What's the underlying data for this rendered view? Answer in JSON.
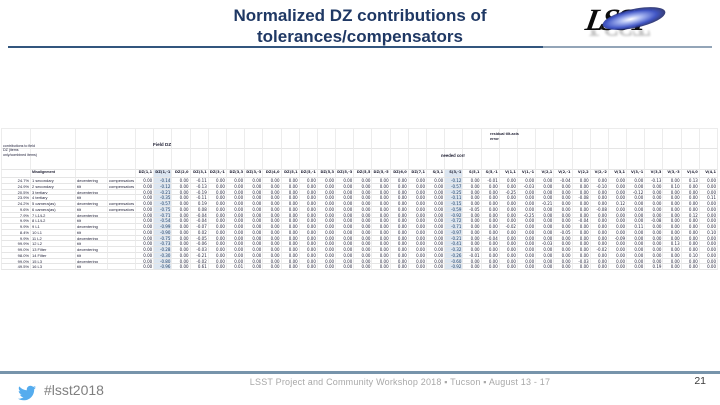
{
  "slide": {
    "title_line1": "Normalized DZ contributions of",
    "title_line2": "tolerances/compensators",
    "logo_text": "LSST",
    "hashtag": "#lsst2018",
    "footer": "LSST Project and Community Workshop 2018 ▪ Tucson ▪ August 13 - 17",
    "page_number": "21"
  },
  "colors": {
    "title": "#1F3864",
    "top_rule": "#33567E",
    "footer_rule": "#7794AB",
    "footer_text": "#A8A8A8",
    "twitter_blue": "#55ACEE",
    "cell_highlight": "#DCE6F1"
  },
  "table": {
    "corner_note": "contributions to field DZ (items only/combined items)",
    "group_labels": {
      "field_dz": "Field DZ",
      "needed_corr": "needed corr",
      "residual": "residual tilt-axis error"
    },
    "meta_headers": [
      "",
      "Misalignment",
      "",
      ""
    ],
    "columns": [
      "DZ(1,1",
      "DZ(1,-1",
      "DZ(2,0",
      "DZ(3,1",
      "DZ(3,-1",
      "DZ(3,3",
      "DZ(3,-3",
      "DZ(4,0",
      "DZ(5,1",
      "DZ(5,-1",
      "DZ(5,3",
      "DZ(5,-3",
      "DZ(5,5",
      "DZ(5,-5",
      "DZ(6,0",
      "DZ(7,1",
      "S(3,1",
      "S(3,-1",
      "S(5,1",
      "S(5,-1",
      "V(1,1",
      "V(1,-1",
      "V(2,1",
      "V(2,-1",
      "V(2,2",
      "V(2,-2",
      "V(3,1",
      "V(3,-1",
      "V(3,3",
      "V(3,-3",
      "V(4,0",
      "V(4,1"
    ],
    "default_value": "0.00",
    "highlight_columns": [
      1,
      17
    ],
    "rows": [
      {
        "pct": "24.7%",
        "item": "1 secondary",
        "type": "decentering",
        "comp": "compensators",
        "values": {
          "1": "-0.14",
          "3": "-0.11",
          "17": "-0.12",
          "19": "-0.01",
          "23": "-0.04",
          "28": "-0.13",
          "30": "0.13"
        }
      },
      {
        "pct": "24.9%",
        "item": "2 secondary",
        "type": "tilt",
        "comp": "compensators",
        "values": {
          "1": "-0.12",
          "3": "-0.13",
          "17": "-0.57",
          "21": "-0.03",
          "25": "-0.10",
          "29": "0.10"
        }
      },
      {
        "pct": "20.5%",
        "item": "3 tertiary",
        "type": "decentering",
        "comp": "",
        "values": {
          "1": "-0.21",
          "3": "-0.19",
          "17": "-0.25",
          "20": "-0.25",
          "27": "-0.12"
        }
      },
      {
        "pct": "23.9%",
        "item": "4 tertiary",
        "type": "tilt",
        "comp": "",
        "values": {
          "1": "-0.35",
          "3": "-0.11",
          "17": "-0.11",
          "24": "-0.08",
          "31": "0.11"
        }
      },
      {
        "pct": "24.2%",
        "item": "5 camera(as)",
        "type": "decentering",
        "comp": "compensators",
        "values": {
          "1": "-0.57",
          "3": "0.19",
          "17": "-0.15",
          "22": "-0.21",
          "26": "0.12"
        }
      },
      {
        "pct": "9.6%",
        "item": "6 camera(as)",
        "type": "tilt",
        "comp": "compensators",
        "values": {
          "1": "-0.75",
          "3": "0.08",
          "17": "-0.59",
          "18": "-0.05",
          "25": "-0.08"
        }
      },
      {
        "pct": "7.9%",
        "item": "7 L1/L2",
        "type": "decentering",
        "comp": "",
        "values": {
          "1": "-0.71",
          "3": "-0.04",
          "17": "-0.92",
          "21": "-0.25",
          "30": "0.12"
        }
      },
      {
        "pct": "9.9%",
        "item": "8 L1/L2",
        "type": "tilt",
        "comp": "",
        "values": {
          "1": "-0.54",
          "3": "-0.04",
          "17": "-0.72",
          "24": "-0.04",
          "28": "-0.08"
        }
      },
      {
        "pct": "9.9%",
        "item": "9 L1",
        "type": "decentering",
        "comp": "",
        "values": {
          "1": "-0.99",
          "3": "-0.07",
          "17": "-0.71",
          "20": "-0.02",
          "27": "0.11"
        }
      },
      {
        "pct": "8.4%",
        "item": "10 L1",
        "type": "tilt",
        "comp": "",
        "values": {
          "1": "-0.90",
          "3": "0.02",
          "17": "-0.97",
          "23": "-0.05",
          "31": "0.10"
        }
      },
      {
        "pct": "9.9%",
        "item": "11 L2",
        "type": "decentering",
        "comp": "",
        "values": {
          "1": "-0.75",
          "3": "-0.05",
          "17": "-0.21",
          "19": "-0.04",
          "26": "-0.09"
        }
      },
      {
        "pct": "99.9%",
        "item": "12 L2",
        "type": "tilt",
        "comp": "",
        "values": {
          "1": "-0.73",
          "3": "-0.06",
          "17": "-0.41",
          "22": "-0.03",
          "29": "0.13"
        }
      },
      {
        "pct": "99.0%",
        "item": "13 Filter",
        "type": "decentering",
        "comp": "",
        "values": {
          "1": "-0.28",
          "3": "-0.03",
          "17": "-0.32",
          "25": "-0.02"
        }
      },
      {
        "pct": "98.0%",
        "item": "14 Filter",
        "type": "tilt",
        "comp": "",
        "values": {
          "1": "-0.30",
          "3": "-0.21",
          "17": "-0.26",
          "18": "-0.01",
          "30": "0.10"
        }
      },
      {
        "pct": "99.0%",
        "item": "15 L3",
        "type": "decentering",
        "comp": "",
        "values": {
          "1": "-0.80",
          "3": "-0.02",
          "17": "-0.60",
          "24": "-0.03"
        }
      },
      {
        "pct": "49.5%",
        "item": "16 L3",
        "type": "tilt",
        "comp": "",
        "values": {
          "1": "-0.96",
          "3": "0.61",
          "5": "0.01",
          "17": "-0.92",
          "28": "0.19"
        }
      }
    ]
  }
}
